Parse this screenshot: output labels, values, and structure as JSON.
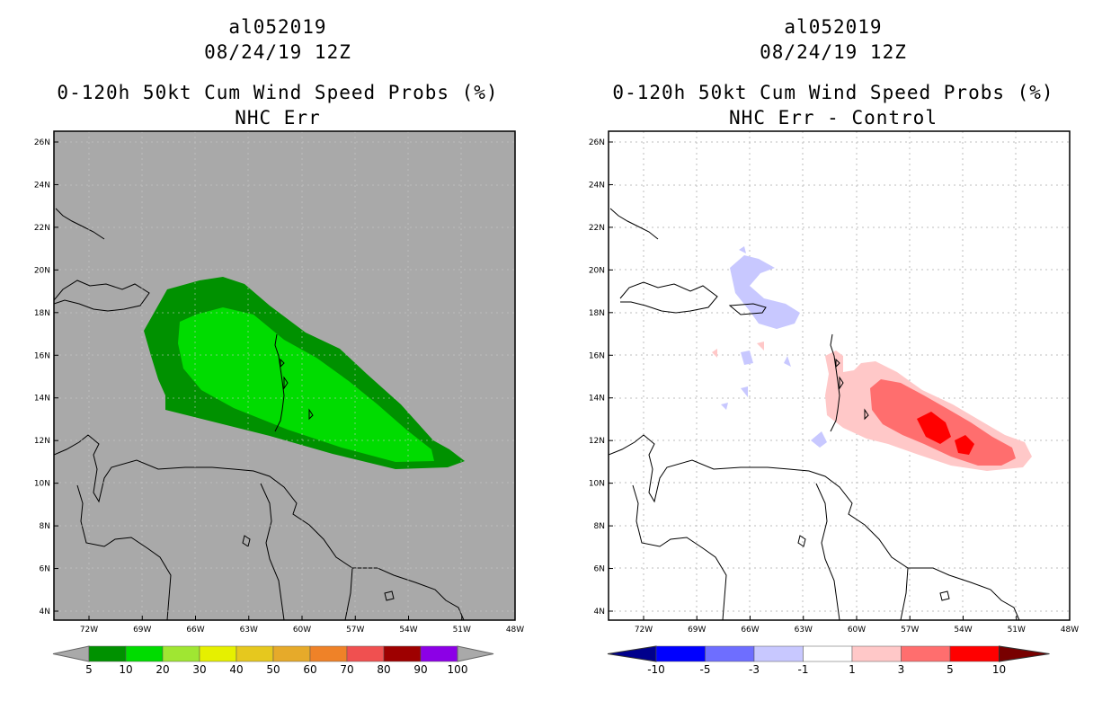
{
  "left_panel": {
    "storm_id": "al052019",
    "datetime": "08/24/19 12Z",
    "product": "0-120h 50kt Cum Wind Speed Probs (%)",
    "subtitle": "NHC Err",
    "map_background": "#a9a9a9",
    "colorbar": {
      "labels": [
        "5",
        "10",
        "20",
        "30",
        "40",
        "50",
        "60",
        "70",
        "80",
        "90",
        "100"
      ],
      "colors": [
        "#009100",
        "#00dc00",
        "#a0e632",
        "#e6f000",
        "#e6c81e",
        "#e6aa2a",
        "#ef8228",
        "#f05050",
        "#9e0000",
        "#8c00e6"
      ],
      "end_color": "#a9a9a9"
    }
  },
  "right_panel": {
    "storm_id": "al052019",
    "datetime": "08/24/19 12Z",
    "product": "0-120h 50kt Cum Wind Speed Probs (%)",
    "subtitle": "NHC Err - Control",
    "map_background": "#ffffff",
    "colorbar": {
      "labels": [
        "-10",
        "-5",
        "-3",
        "-1",
        "1",
        "3",
        "5",
        "10"
      ],
      "colors": [
        "#0000ff",
        "#6e6eff",
        "#c8c8ff",
        "#ffffff",
        "#ffc8c8",
        "#ff6e6e",
        "#ff0000"
      ],
      "low_end_color": "#00008c",
      "high_end_color": "#780000"
    }
  },
  "axes": {
    "lat_labels": [
      "26N",
      "24N",
      "22N",
      "20N",
      "18N",
      "16N",
      "14N",
      "12N",
      "10N",
      "8N",
      "6N",
      "4N"
    ],
    "lon_labels": [
      "72W",
      "69W",
      "66W",
      "63W",
      "60W",
      "57W",
      "54W",
      "51W",
      "48W"
    ]
  },
  "colors": {
    "prob_5": "#009100",
    "prob_10": "#00dc00",
    "diff_neg": "#c8c8ff",
    "diff_pos1": "#ffc8c8",
    "diff_pos3": "#ff6e6e",
    "diff_pos5": "#ff0000"
  }
}
